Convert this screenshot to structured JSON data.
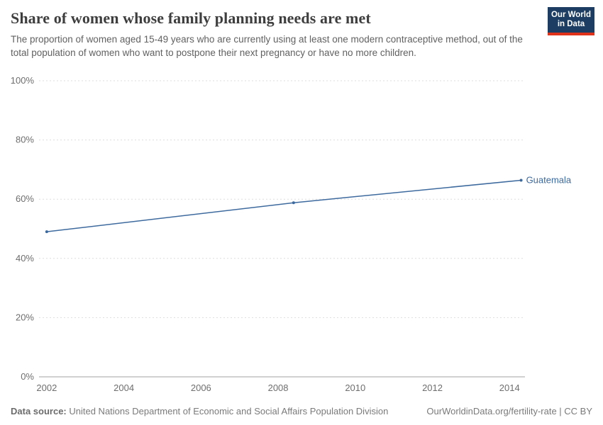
{
  "header": {
    "title": "Share of women whose family planning needs are met",
    "subtitle": "The proportion of women aged 15-49 years who are currently using at least one modern contraceptive method, out of the total population of women who want to postpone their next pregnancy or have no more children.",
    "logo": {
      "line1": "Our World",
      "line2": "in Data",
      "bg_color": "#1d3d63",
      "accent_color": "#e0311b"
    }
  },
  "footer": {
    "source_label": "Data source:",
    "source_text": " United Nations Department of Economic and Social Affairs Population Division",
    "link_text": "OurWorldinData.org/fertility-rate | CC BY"
  },
  "chart_data": {
    "type": "line",
    "title": "Share of women whose family planning needs are met",
    "xlabel": "",
    "ylabel": "",
    "x_range": [
      2001.8,
      2014.4
    ],
    "y_range": [
      0,
      100
    ],
    "x_ticks": [
      2002,
      2004,
      2006,
      2008,
      2010,
      2012,
      2014
    ],
    "y_ticks": [
      0,
      20,
      40,
      60,
      80,
      100
    ],
    "y_tick_suffix": "%",
    "grid": "dashed-horizontal",
    "legend_position": "end-of-line-label",
    "series": [
      {
        "name": "Guatemala",
        "color": "#3d6a9e",
        "points": [
          {
            "x": 2002.0,
            "y": 49.0
          },
          {
            "x": 2008.4,
            "y": 58.8
          },
          {
            "x": 2014.3,
            "y": 66.4
          }
        ]
      }
    ]
  }
}
